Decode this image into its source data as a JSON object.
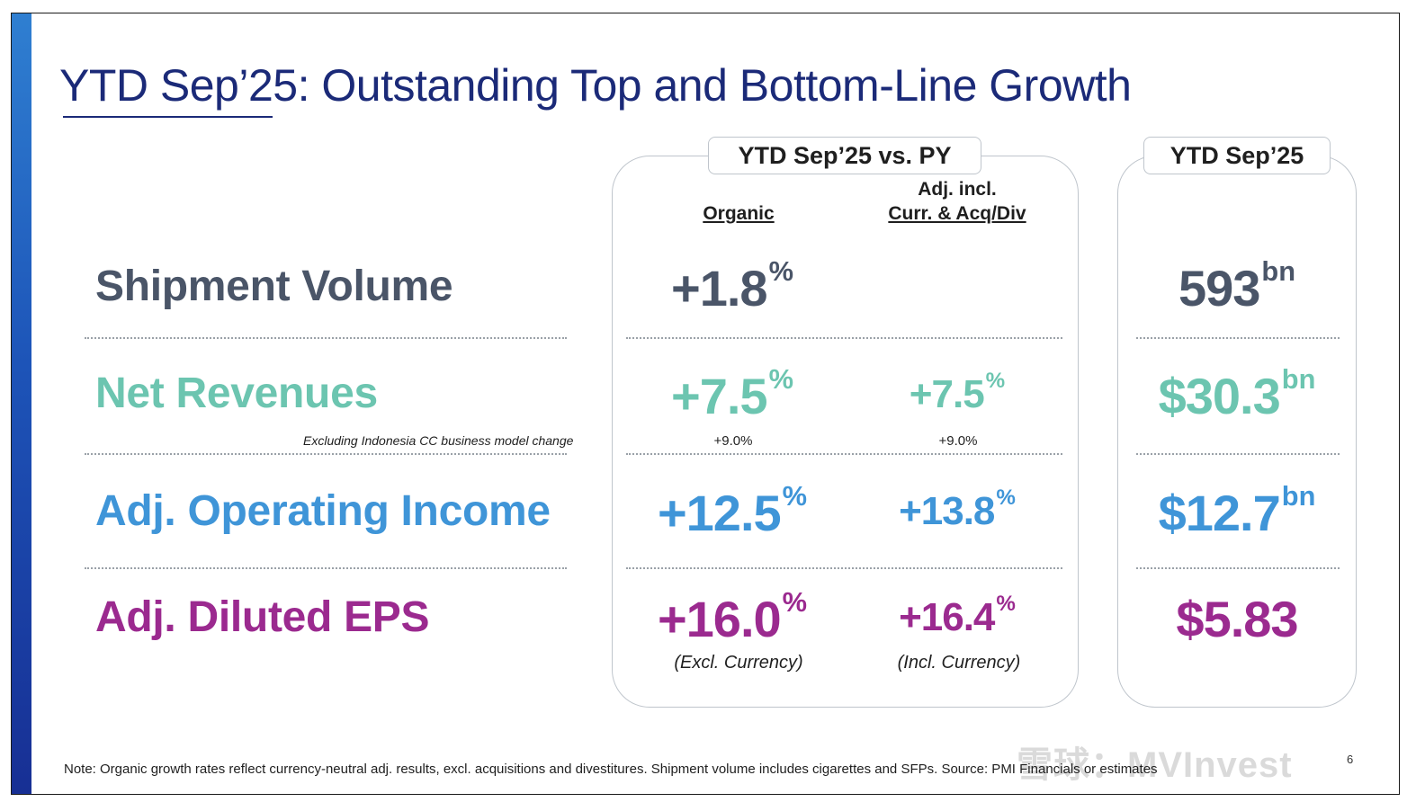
{
  "title": "YTD Sep’25: Outstanding Top and Bottom-Line Growth",
  "colors": {
    "title": "#1b2a78",
    "shipment": "#4a5568",
    "revenues": "#6cc5b0",
    "operating": "#3f95d8",
    "eps": "#9b2a8f"
  },
  "panel_vs": {
    "header": "YTD Sep’25 vs. PY",
    "col_organic": "Organic",
    "col_adj_line1": "Adj. incl.",
    "col_adj_line2": "Curr. & Acq/Div"
  },
  "panel_ytd": {
    "header": "YTD Sep’25"
  },
  "rows": {
    "shipment": {
      "label": "Shipment Volume",
      "organic": "+1.8",
      "organic_unit": "%",
      "ytd": "593",
      "ytd_unit": "bn"
    },
    "revenues": {
      "label": "Net Revenues",
      "note": "Excluding Indonesia CC business model change",
      "organic": "+7.5",
      "organic_unit": "%",
      "organic_sub": "+9.0%",
      "adj": "+7.5",
      "adj_unit": "%",
      "adj_sub": "+9.0%",
      "ytd": "$30.3",
      "ytd_unit": "bn"
    },
    "operating": {
      "label": "Adj. Operating Income",
      "organic": "+12.5",
      "organic_unit": "%",
      "adj": "+13.8",
      "adj_unit": "%",
      "ytd": "$12.7",
      "ytd_unit": "bn"
    },
    "eps": {
      "label": "Adj. Diluted EPS",
      "organic": "+16.0",
      "organic_unit": "%",
      "organic_sub": "(Excl. Currency)",
      "adj": "+16.4",
      "adj_unit": "%",
      "adj_sub": "(Incl. Currency)",
      "ytd": "$5.83"
    }
  },
  "footnote": "Note: Organic growth rates reflect currency-neutral adj. results, excl. acquisitions and divestitures. Shipment volume includes cigarettes and SFPs. Source: PMI Financials or estimates",
  "page_number": "6",
  "watermark": "雪球：MVInvest"
}
